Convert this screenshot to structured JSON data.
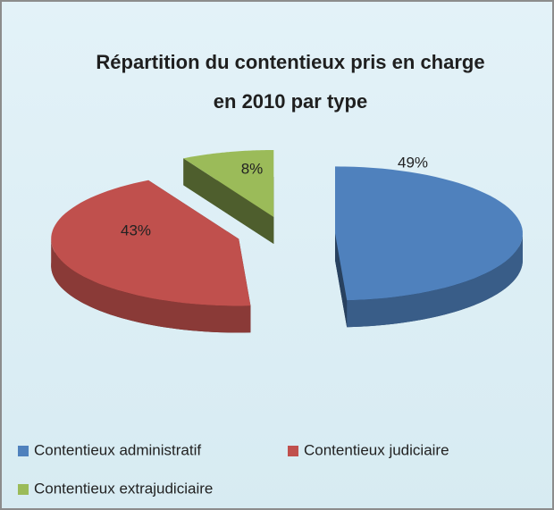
{
  "chart_data": {
    "type": "pie3d",
    "title": "Répartition du contentieux pris en charge en 2010 par type",
    "categories": [
      "Contentieux administratif",
      "Contentieux judiciaire",
      "Contentieux extrajudiciaire"
    ],
    "values": [
      49,
      43,
      8
    ],
    "value_labels": [
      "49%",
      "43%",
      "8%"
    ],
    "colors": [
      "#4f81bd",
      "#c0504d",
      "#9bbb59"
    ],
    "legend": "bottom"
  }
}
